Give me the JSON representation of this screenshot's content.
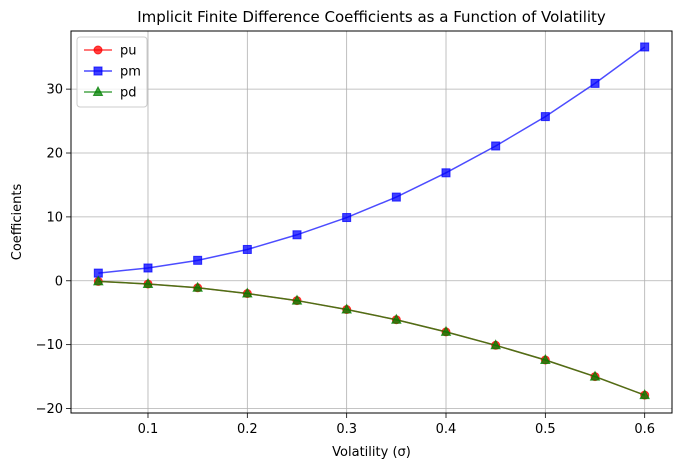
{
  "chart_data": {
    "type": "line",
    "title": "Implicit Finite Difference Coefficients as a Function of Volatility",
    "xlabel": "Volatility (σ)",
    "ylabel": "Coefficients",
    "x": [
      0.05,
      0.1,
      0.15,
      0.2,
      0.25,
      0.3,
      0.35,
      0.4,
      0.45,
      0.5,
      0.55,
      0.6
    ],
    "xlim": [
      0.0225,
      0.6275
    ],
    "ylim": [
      -20.7,
      39.1
    ],
    "xticks": [
      0.1,
      0.2,
      0.3,
      0.4,
      0.5,
      0.6
    ],
    "xtick_labels": [
      "0.1",
      "0.2",
      "0.3",
      "0.4",
      "0.5",
      "0.6"
    ],
    "yticks": [
      -20,
      -10,
      0,
      10,
      20,
      30
    ],
    "ytick_labels": [
      "−20",
      "−10",
      "0",
      "10",
      "20",
      "30"
    ],
    "grid": true,
    "legend_position": "top-left",
    "series": [
      {
        "name": "pu",
        "color": "#ff0000",
        "marker": "circle",
        "values": [
          -0.1,
          -0.5,
          -1.1,
          -2.0,
          -3.1,
          -4.5,
          -6.1,
          -8.0,
          -10.1,
          -12.4,
          -15.0,
          -17.9
        ]
      },
      {
        "name": "pm",
        "color": "#0000ff",
        "marker": "square",
        "values": [
          1.2,
          2.0,
          3.2,
          4.9,
          7.2,
          9.9,
          13.1,
          16.9,
          21.1,
          25.7,
          30.9,
          36.6
        ]
      },
      {
        "name": "pd",
        "color": "#008000",
        "marker": "triangle",
        "values": [
          -0.1,
          -0.5,
          -1.1,
          -2.0,
          -3.1,
          -4.5,
          -6.1,
          -8.0,
          -10.1,
          -12.4,
          -15.0,
          -17.9
        ]
      }
    ]
  }
}
